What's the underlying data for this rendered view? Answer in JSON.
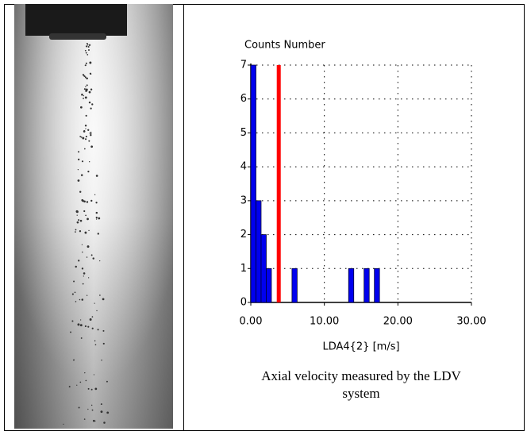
{
  "chart_data": {
    "type": "histogram",
    "title": "Counts Number",
    "x_label": "LDA4{2} [m/s]",
    "bins": [
      0,
      0.7,
      1.4,
      2.1,
      2.8,
      3.5,
      4.2,
      4.9,
      5.6,
      6.3,
      7,
      7.7,
      8.4,
      9.1,
      9.8,
      10.5,
      11.2,
      11.9,
      12.6,
      13.3,
      14,
      14.7,
      15.4,
      16.1,
      16.8,
      17.5
    ],
    "values": [
      7,
      3,
      2,
      1,
      0,
      0,
      0,
      0,
      1,
      0,
      0,
      0,
      0,
      0,
      0,
      0,
      0,
      0,
      0,
      1,
      0,
      0,
      1,
      0,
      1
    ],
    "color": "#0000ee",
    "marker_line": {
      "x": 3.8,
      "color": "#ff0000"
    },
    "xlim": [
      0,
      30
    ],
    "xticks": [
      {
        "value": 0,
        "label": "0.00"
      },
      {
        "value": 10,
        "label": "10.00"
      },
      {
        "value": 20,
        "label": "20.00"
      },
      {
        "value": 30,
        "label": "30.00"
      }
    ],
    "ylim": [
      0,
      7
    ],
    "yticks": [
      0,
      1,
      2,
      3,
      4,
      5,
      6,
      7
    ],
    "grid": true
  },
  "caption": [
    "Axial velocity measured by the LDV",
    "system"
  ]
}
